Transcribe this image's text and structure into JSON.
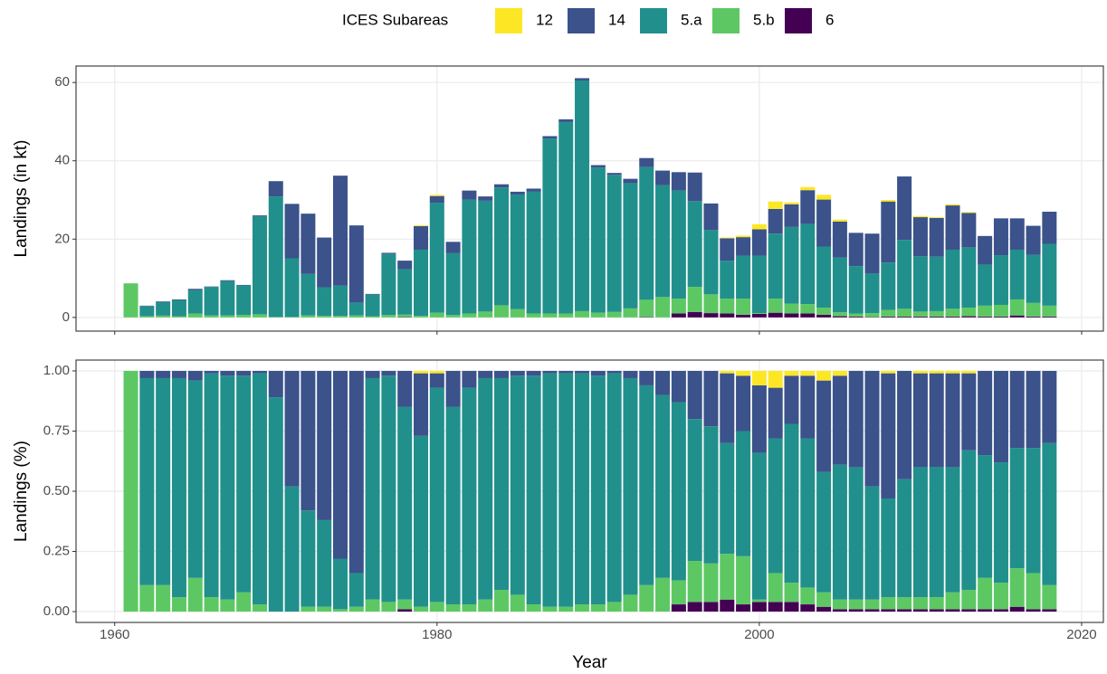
{
  "chart_data": [
    {
      "type": "stacked_bar",
      "legend_title": "ICES Subareas",
      "ylabel": "Landings (in kt)",
      "x": [
        1961,
        1962,
        1963,
        1964,
        1965,
        1966,
        1967,
        1968,
        1969,
        1970,
        1971,
        1972,
        1973,
        1974,
        1975,
        1976,
        1977,
        1978,
        1979,
        1980,
        1981,
        1982,
        1983,
        1984,
        1985,
        1986,
        1987,
        1988,
        1989,
        1990,
        1991,
        1992,
        1993,
        1994,
        1995,
        1996,
        1997,
        1998,
        1999,
        2000,
        2001,
        2002,
        2003,
        2004,
        2005,
        2006,
        2007,
        2008,
        2009,
        2010,
        2011,
        2012,
        2013,
        2014,
        2015,
        2016,
        2017,
        2018
      ],
      "series": [
        {
          "name": "12",
          "color": "#FDE725",
          "values": [
            0,
            0,
            0,
            0,
            0,
            0,
            0,
            0,
            0,
            0,
            0,
            0,
            0,
            0,
            0,
            0,
            0,
            0,
            0.2,
            0.3,
            0,
            0,
            0,
            0,
            0,
            0,
            0,
            0,
            0,
            0,
            0,
            0,
            0,
            0,
            0,
            0,
            0,
            0.2,
            0.4,
            1.3,
            1.9,
            0.5,
            0.8,
            1.2,
            0.5,
            0,
            0,
            0.4,
            0,
            0.3,
            0.2,
            0.3,
            0.2,
            0,
            0,
            0,
            0,
            0
          ]
        },
        {
          "name": "14",
          "color": "#3B528B",
          "values": [
            0,
            0.1,
            0.15,
            0.13,
            0.3,
            0.1,
            0.2,
            0.15,
            0.2,
            3.9,
            13.9,
            15.4,
            12.7,
            28.1,
            19.7,
            0.2,
            0.3,
            2.2,
            6.0,
            1.7,
            2.9,
            2.3,
            1.1,
            0.8,
            0.7,
            0.7,
            0.6,
            0.7,
            0.6,
            0.6,
            0.5,
            1.1,
            2.3,
            3.7,
            4.7,
            7.3,
            6.8,
            5.7,
            4.7,
            6.7,
            6.3,
            5.8,
            8.6,
            12.0,
            9.2,
            8.5,
            10.2,
            15.6,
            16.2,
            10.0,
            9.9,
            11.3,
            8.8,
            7.3,
            9.4,
            8.0,
            7.4,
            8.2
          ]
        },
        {
          "name": "5.a",
          "color": "#21908C",
          "values": [
            0,
            2.57,
            3.5,
            4.2,
            6.0,
            7.3,
            8.8,
            7.5,
            25.1,
            30.8,
            15.0,
            10.6,
            7.3,
            7.7,
            3.3,
            5.5,
            15.6,
            11.6,
            16.9,
            28.1,
            15.8,
            29.1,
            28.3,
            30.1,
            29.3,
            31.2,
            44.7,
            48.9,
            58.9,
            37.1,
            35.0,
            32.0,
            33.9,
            28.6,
            27.6,
            21.9,
            16.4,
            9.7,
            11.0,
            14.7,
            16.6,
            19.6,
            20.5,
            15.6,
            14.0,
            12.1,
            10.1,
            12.1,
            17.6,
            14.1,
            13.9,
            15.1,
            15.4,
            10.5,
            12.7,
            12.7,
            12.3,
            15.8
          ]
        },
        {
          "name": "5.b",
          "color": "#5DC863",
          "values": [
            8.7,
            0.33,
            0.45,
            0.27,
            1.0,
            0.5,
            0.5,
            0.65,
            0.8,
            0.1,
            0.1,
            0.5,
            0.4,
            0.4,
            0.5,
            0.3,
            0.6,
            0.6,
            0.4,
            1.2,
            0.6,
            1.0,
            1.5,
            3.1,
            2.1,
            1.0,
            1.0,
            1.0,
            1.6,
            1.2,
            1.4,
            2.3,
            4.4,
            5.2,
            3.8,
            6.4,
            4.8,
            3.8,
            4.1,
            0.2,
            3.6,
            2.5,
            2.4,
            1.8,
            1.0,
            0.8,
            1.0,
            1.7,
            2.0,
            1.3,
            1.4,
            2.0,
            2.2,
            2.8,
            3.0,
            4.1,
            3.5,
            2.8
          ]
        },
        {
          "name": "6",
          "color": "#440154",
          "values": [
            0,
            0,
            0,
            0,
            0,
            0,
            0,
            0,
            0,
            0,
            0,
            0,
            0,
            0,
            0,
            0,
            0,
            0.1,
            0,
            0,
            0,
            0,
            0,
            0,
            0,
            0,
            0,
            0,
            0,
            0,
            0,
            0,
            0.1,
            0,
            1.0,
            1.4,
            1.1,
            1.0,
            0.7,
            0.9,
            1.2,
            1.0,
            1.0,
            0.7,
            0.3,
            0.2,
            0.1,
            0.2,
            0.2,
            0.2,
            0.2,
            0.2,
            0.3,
            0.2,
            0.2,
            0.5,
            0.2,
            0.2
          ]
        }
      ],
      "xlim": [
        1957.6,
        2021.35
      ],
      "xticks": [
        1960,
        1980,
        2000,
        2020
      ],
      "ylim": [
        -3.5,
        64.2
      ],
      "yticks": [
        0,
        20,
        40,
        60
      ],
      "grid": true
    },
    {
      "type": "stacked_bar",
      "xlabel": "Year",
      "ylabel": "Landings (%)",
      "x": [
        1961,
        1962,
        1963,
        1964,
        1965,
        1966,
        1967,
        1968,
        1969,
        1970,
        1971,
        1972,
        1973,
        1974,
        1975,
        1976,
        1977,
        1978,
        1979,
        1980,
        1981,
        1982,
        1983,
        1984,
        1985,
        1986,
        1987,
        1988,
        1989,
        1990,
        1991,
        1992,
        1993,
        1994,
        1995,
        1996,
        1997,
        1998,
        1999,
        2000,
        2001,
        2002,
        2003,
        2004,
        2005,
        2006,
        2007,
        2008,
        2009,
        2010,
        2011,
        2012,
        2013,
        2014,
        2015,
        2016,
        2017,
        2018
      ],
      "series": [
        {
          "name": "12",
          "color": "#FDE725",
          "values": [
            0,
            0,
            0,
            0,
            0,
            0,
            0,
            0,
            0,
            0,
            0,
            0,
            0,
            0,
            0,
            0,
            0,
            0,
            0.01,
            0.01,
            0,
            0,
            0,
            0,
            0,
            0,
            0,
            0,
            0,
            0,
            0,
            0,
            0,
            0,
            0,
            0,
            0,
            0.01,
            0.02,
            0.06,
            0.07,
            0.02,
            0.02,
            0.04,
            0.02,
            0,
            0,
            0.01,
            0,
            0.01,
            0.01,
            0.01,
            0.01,
            0,
            0,
            0,
            0,
            0
          ]
        },
        {
          "name": "14",
          "color": "#3B528B",
          "values": [
            0,
            0.03,
            0.03,
            0.03,
            0.04,
            0.01,
            0.02,
            0.02,
            0.01,
            0.11,
            0.48,
            0.58,
            0.62,
            0.78,
            0.84,
            0.03,
            0.02,
            0.15,
            0.26,
            0.06,
            0.15,
            0.07,
            0.03,
            0.03,
            0.02,
            0.02,
            0.01,
            0.01,
            0.01,
            0.02,
            0.01,
            0.03,
            0.06,
            0.1,
            0.13,
            0.2,
            0.23,
            0.29,
            0.23,
            0.28,
            0.21,
            0.2,
            0.26,
            0.38,
            0.37,
            0.4,
            0.48,
            0.52,
            0.45,
            0.39,
            0.39,
            0.39,
            0.32,
            0.35,
            0.38,
            0.32,
            0.32,
            0.3
          ]
        },
        {
          "name": "5.a",
          "color": "#21908C",
          "values": [
            0,
            0.86,
            0.86,
            0.91,
            0.82,
            0.93,
            0.93,
            0.9,
            0.96,
            0.89,
            0.52,
            0.4,
            0.36,
            0.21,
            0.14,
            0.92,
            0.94,
            0.8,
            0.71,
            0.89,
            0.82,
            0.9,
            0.92,
            0.88,
            0.91,
            0.95,
            0.97,
            0.97,
            0.96,
            0.95,
            0.95,
            0.9,
            0.83,
            0.76,
            0.74,
            0.59,
            0.57,
            0.46,
            0.52,
            0.61,
            0.56,
            0.66,
            0.62,
            0.5,
            0.56,
            0.55,
            0.47,
            0.41,
            0.49,
            0.54,
            0.54,
            0.52,
            0.58,
            0.51,
            0.5,
            0.5,
            0.52,
            0.59
          ]
        },
        {
          "name": "5.b",
          "color": "#5DC863",
          "values": [
            1,
            0.11,
            0.11,
            0.06,
            0.14,
            0.06,
            0.05,
            0.08,
            0.03,
            0,
            0,
            0.02,
            0.02,
            0.01,
            0.02,
            0.05,
            0.04,
            0.04,
            0.02,
            0.04,
            0.03,
            0.03,
            0.05,
            0.09,
            0.07,
            0.03,
            0.02,
            0.02,
            0.03,
            0.03,
            0.04,
            0.07,
            0.11,
            0.14,
            0.1,
            0.17,
            0.16,
            0.19,
            0.2,
            0.01,
            0.12,
            0.08,
            0.07,
            0.06,
            0.04,
            0.04,
            0.04,
            0.05,
            0.05,
            0.05,
            0.05,
            0.07,
            0.08,
            0.13,
            0.11,
            0.16,
            0.15,
            0.1
          ]
        },
        {
          "name": "6",
          "color": "#440154",
          "values": [
            0,
            0,
            0,
            0,
            0,
            0,
            0,
            0,
            0,
            0,
            0,
            0,
            0,
            0,
            0,
            0,
            0,
            0.01,
            0,
            0,
            0,
            0,
            0,
            0,
            0,
            0,
            0,
            0,
            0,
            0,
            0,
            0,
            0,
            0,
            0.03,
            0.04,
            0.04,
            0.05,
            0.03,
            0.04,
            0.04,
            0.04,
            0.03,
            0.02,
            0.01,
            0.01,
            0.01,
            0.01,
            0.01,
            0.01,
            0.01,
            0.01,
            0.01,
            0.01,
            0.01,
            0.02,
            0.01,
            0.01
          ]
        }
      ],
      "xlim": [
        1957.6,
        2021.35
      ],
      "xticks": [
        1960,
        1980,
        2000,
        2020
      ],
      "ylim": [
        -0.045,
        1.045
      ],
      "yticks": [
        {
          "value": 0,
          "label": "0.00"
        },
        {
          "value": 0.25,
          "label": "0.25"
        },
        {
          "value": 0.5,
          "label": "0.50"
        },
        {
          "value": 0.75,
          "label": "0.75"
        },
        {
          "value": 1,
          "label": "1.00"
        }
      ],
      "grid": true
    }
  ]
}
